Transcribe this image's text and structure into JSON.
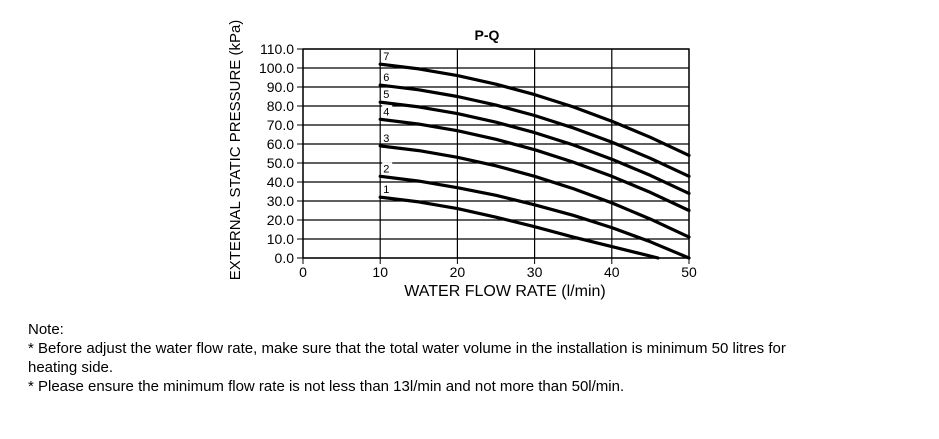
{
  "chart_data": {
    "type": "line",
    "title": "P-Q",
    "xlabel": "WATER FLOW RATE (l/min)",
    "ylabel": "EXTERNAL STATIC PRESSURE (kPa)",
    "xlim": [
      0,
      50
    ],
    "ylim": [
      0,
      110
    ],
    "x_ticks": [
      0,
      10,
      20,
      30,
      40,
      50
    ],
    "x_tick_labels": [
      "0",
      "10",
      "20",
      "30",
      "40",
      "50"
    ],
    "y_ticks": [
      0,
      10,
      20,
      30,
      40,
      50,
      60,
      70,
      80,
      90,
      100,
      110
    ],
    "y_tick_labels": [
      "0.0",
      "10.0",
      "20.0",
      "30.0",
      "40.0",
      "50.0",
      "60.0",
      "70.0",
      "80.0",
      "90.0",
      "100.0",
      "110.0"
    ],
    "grid": true,
    "series": [
      {
        "name": "1",
        "x": [
          10,
          15,
          20,
          25,
          30,
          35,
          40,
          46
        ],
        "y": [
          32,
          29.5,
          26,
          21.5,
          16.5,
          11,
          6,
          0
        ]
      },
      {
        "name": "2",
        "x": [
          10,
          15,
          20,
          25,
          30,
          35,
          40,
          45,
          50
        ],
        "y": [
          43,
          40.5,
          37,
          33,
          28,
          22.5,
          16,
          8.5,
          0
        ]
      },
      {
        "name": "3",
        "x": [
          10,
          15,
          20,
          25,
          30,
          35,
          40,
          45,
          50
        ],
        "y": [
          59,
          56.5,
          53,
          48.5,
          43,
          36.5,
          29,
          20.5,
          11
        ]
      },
      {
        "name": "4",
        "x": [
          10,
          15,
          20,
          25,
          30,
          35,
          40,
          45,
          50
        ],
        "y": [
          73,
          70.5,
          67,
          62.5,
          57,
          50.5,
          43,
          34.5,
          25
        ]
      },
      {
        "name": "5",
        "x": [
          10,
          15,
          20,
          25,
          30,
          35,
          40,
          45,
          50
        ],
        "y": [
          82,
          79.5,
          76,
          71.5,
          66,
          59.5,
          52,
          43.5,
          34
        ]
      },
      {
        "name": "6",
        "x": [
          10,
          15,
          20,
          25,
          30,
          35,
          40,
          45,
          50
        ],
        "y": [
          91,
          88.5,
          85,
          80.5,
          75,
          68.5,
          61,
          52.5,
          43
        ]
      },
      {
        "name": "7",
        "x": [
          10,
          15,
          20,
          25,
          30,
          35,
          40,
          45,
          50
        ],
        "y": [
          102,
          99.5,
          96,
          91.5,
          86,
          79.5,
          72,
          63.5,
          54
        ]
      }
    ]
  },
  "note": {
    "heading": "Note:",
    "line1": "* Before adjust the water flow rate, make sure that the total water volume in the installation is minimum 50 litres for",
    "line2": "heating side.",
    "line3": "* Please ensure the minimum flow rate is not less than 13l/min and not more than 50l/min."
  }
}
